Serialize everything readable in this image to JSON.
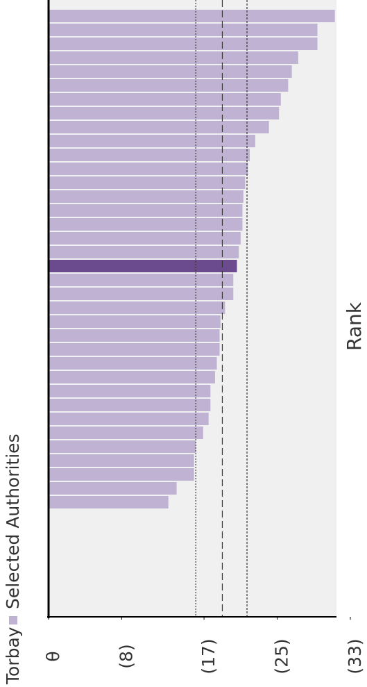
{
  "chart_data": {
    "type": "bar",
    "orientation": "horizontal-rotated",
    "xlabel": "Rank",
    "series": [
      {
        "name": "Torbay",
        "color": "#6b4a8e",
        "values": [
          null,
          null,
          null,
          null,
          null,
          null,
          null,
          null,
          null,
          null,
          null,
          null,
          null,
          null,
          null,
          null,
          null,
          null,
          20.6,
          null,
          null,
          null,
          null,
          null,
          null,
          null,
          null,
          null,
          null,
          null,
          null,
          null,
          null,
          null,
          null,
          null
        ]
      },
      {
        "name": "Selected Authorities",
        "color": "#bfb2d3",
        "values": [
          31.3,
          29.4,
          29.4,
          27.3,
          26.6,
          26.2,
          25.4,
          25.2,
          24.1,
          22.6,
          22.0,
          21.8,
          21.5,
          21.3,
          21.2,
          21.2,
          21.0,
          20.8,
          null,
          20.2,
          20.2,
          19.3,
          18.8,
          18.7,
          18.7,
          18.4,
          18.2,
          17.7,
          17.7,
          17.5,
          16.9,
          16.1,
          15.9,
          15.9,
          14.0,
          13.1
        ]
      }
    ],
    "reference_lines": [
      16.1,
      19.0,
      21.7
    ],
    "xlim": [
      0,
      33
    ],
    "xticks": [
      {
        "value": 0,
        "label": "θ"
      },
      {
        "value": 8,
        "label": "(8)"
      },
      {
        "value": 17,
        "label": "(17)"
      },
      {
        "value": 25,
        "label": "(25)"
      },
      {
        "value": 33,
        "label": "(33)"
      }
    ]
  }
}
